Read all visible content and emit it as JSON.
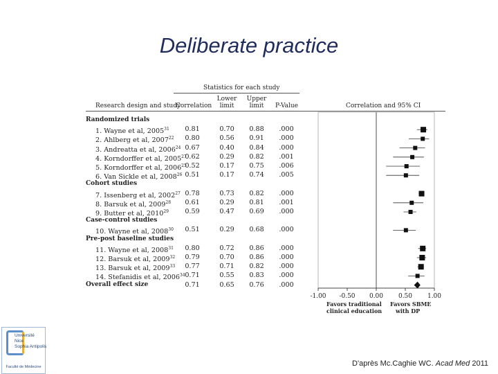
{
  "slide": {
    "title": "Deliberate practice"
  },
  "credit": {
    "prefix": "D'après Mc.Caghie WC. ",
    "journal": "Acad Med",
    "year": " 2011"
  },
  "logo": {
    "lines": [
      "Université",
      "Nice",
      "Sophia Antipolis"
    ],
    "faculty": "Faculté de Médecine"
  },
  "chart_data": {
    "type": "forest",
    "columns": {
      "group": "Statistics for each study",
      "design": "Research design and study",
      "correlation": "Correlation",
      "lower": [
        "Lower",
        "limit"
      ],
      "upper": [
        "Upper",
        "limit"
      ],
      "pvalue": "P-Value",
      "plot": "Correlation and 95% CI"
    },
    "sections": [
      {
        "label": "Randomized trials",
        "studies": [
          {
            "name": "1. Wayne et al, 2005",
            "ref": "31",
            "r": "0.81",
            "lower": "0.70",
            "upper": "0.88",
            "p": ".000"
          },
          {
            "name": "2. Ahlberg et al, 2007",
            "ref": "22",
            "r": "0.80",
            "lower": "0.56",
            "upper": "0.91",
            "p": ".000"
          },
          {
            "name": "3. Andreatta et al, 2006",
            "ref": "24",
            "r": "0.67",
            "lower": "0.40",
            "upper": "0.84",
            "p": ".000"
          },
          {
            "name": "4. Korndorffer et al, 2005",
            "ref": "27",
            "r": "0.62",
            "lower": "0.29",
            "upper": "0.82",
            "p": ".001"
          },
          {
            "name": "5. Korndorffer et al, 2006",
            "ref": "25",
            "r": "0.52",
            "lower": "0.17",
            "upper": "0.75",
            "p": ".006"
          },
          {
            "name": "6. Van Sickle et al, 2008",
            "ref": "26",
            "r": "0.51",
            "lower": "0.17",
            "upper": "0.74",
            "p": ".005"
          }
        ]
      },
      {
        "label": "Cohort studies",
        "studies": [
          {
            "name": "7. Issenberg et al, 2002",
            "ref": "27",
            "r": "0.78",
            "lower": "0.73",
            "upper": "0.82",
            "p": ".000"
          },
          {
            "name": "8. Barsuk et al, 2009",
            "ref": "28",
            "r": "0.61",
            "lower": "0.29",
            "upper": "0.81",
            "p": ".001"
          },
          {
            "name": "9. Butter et al, 2010",
            "ref": "29",
            "r": "0.59",
            "lower": "0.47",
            "upper": "0.69",
            "p": ".000"
          }
        ]
      },
      {
        "label": "Case-control studies",
        "studies": [
          {
            "name": "10. Wayne et al, 2008",
            "ref": "30",
            "r": "0.51",
            "lower": "0.29",
            "upper": "0.68",
            "p": ".000"
          }
        ]
      },
      {
        "label": "Pre-post baseline studies",
        "studies": [
          {
            "name": "11. Wayne et al, 2008",
            "ref": "31",
            "r": "0.80",
            "lower": "0.72",
            "upper": "0.86",
            "p": ".000"
          },
          {
            "name": "12. Barsuk et al, 2009",
            "ref": "32",
            "r": "0.79",
            "lower": "0.70",
            "upper": "0.86",
            "p": ".000"
          },
          {
            "name": "13. Barsuk et al, 2009",
            "ref": "33",
            "r": "0.77",
            "lower": "0.71",
            "upper": "0.82",
            "p": ".000"
          },
          {
            "name": "14. Stefanidis et al, 2006",
            "ref": "34",
            "r": "0.71",
            "lower": "0.55",
            "upper": "0.83",
            "p": ".000"
          }
        ]
      }
    ],
    "overall": {
      "name": "Overall effect size",
      "r": "0.71",
      "lower": "0.65",
      "upper": "0.76",
      "p": ".000"
    },
    "xlim": [
      -1.0,
      1.0
    ],
    "xticks": [
      "-1.00",
      "-0.50",
      "0.00",
      "0.50",
      "1.00"
    ],
    "xlabels": {
      "left": [
        "Favors traditional",
        "clinical education"
      ],
      "right": [
        "Favors SBME",
        "with DP"
      ]
    }
  }
}
